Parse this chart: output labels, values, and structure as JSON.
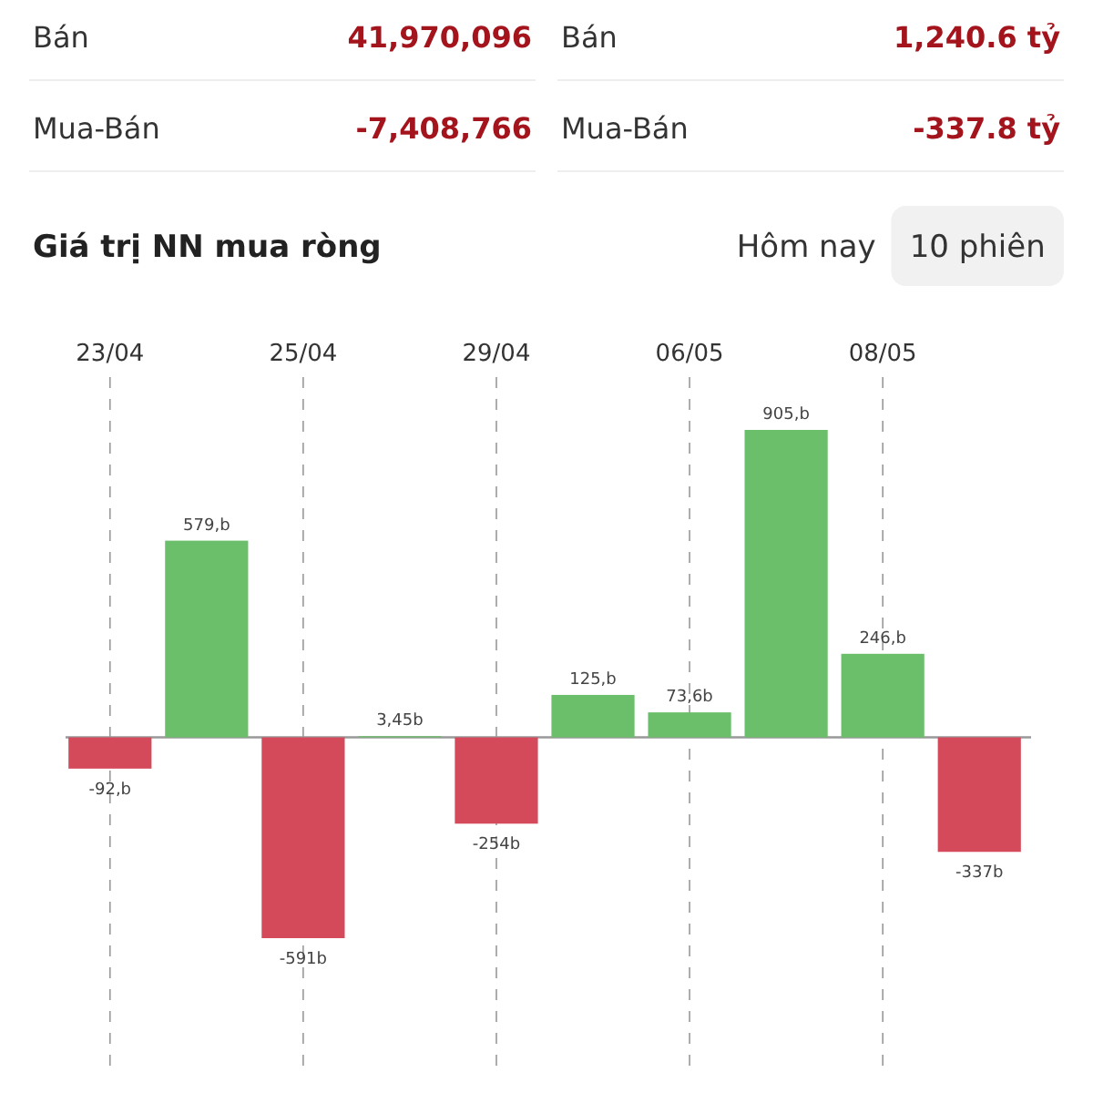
{
  "chart_data": [
    {
      "type": "other",
      "annotations": [
        "Bán",
        "41,970,096",
        "Bán",
        "1,240.6 tỷ",
        "Mua-Bán",
        "-7,408,766",
        "Mua-Bán",
        "-337.8 tỷ"
      ]
    },
    {
      "type": "bar",
      "title": "Giá trị NN mua ròng",
      "annotations": [
        "Hôm nay",
        "10 phiên"
      ],
      "categories": [
        "23/04",
        null,
        "25/04",
        null,
        "29/04",
        null,
        "06/05",
        null,
        "08/05",
        null
      ],
      "values": [
        -92,
        579,
        -591,
        3.45,
        -254,
        125,
        73.6,
        905,
        246,
        -337
      ],
      "colors": [
        "#d44a5a",
        "#6cbf6a",
        "#d44a5a",
        "#6cbf6a",
        "#d44a5a",
        "#6cbf6a",
        "#6cbf6a",
        "#6cbf6a",
        "#6cbf6a",
        "#d44a5a"
      ],
      "value_labels": [
        "-92,b",
        "579,b",
        "-591b",
        "3,45b",
        "-254b",
        "125,b",
        "73,6b",
        "905,b",
        "246,b",
        "-337b"
      ],
      "grid": "x"
    }
  ]
}
